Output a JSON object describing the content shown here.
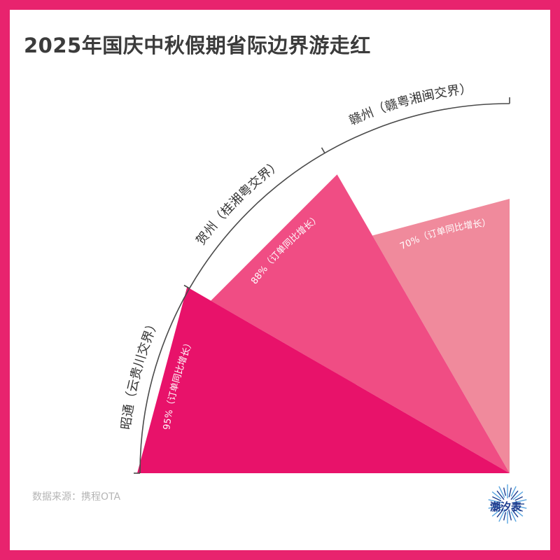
{
  "title": "2025年国庆中秋假期省际边界游走红",
  "source": "数据来源：携程OTA",
  "brand": "潮汐表",
  "colors": {
    "border": "#e8236e",
    "arc": "#4a4a4a",
    "brand": "#1d3d8f"
  },
  "chart_data": {
    "type": "radial-bar",
    "title": "2025年国庆中秋假期省际边界游走红",
    "unit": "%",
    "categories": [
      "昭通（云贵川交界）",
      "贺州（桂湘粤交界）",
      "赣州（赣粤湘闽交界）"
    ],
    "values": [
      95,
      88,
      70
    ],
    "value_labels": [
      "95%（订单同比增长）",
      "88%（订单同比增长）",
      "70%（订单同比增长）"
    ],
    "colors": [
      "#e8126a",
      "#f04d84",
      "#f08a9c"
    ]
  }
}
